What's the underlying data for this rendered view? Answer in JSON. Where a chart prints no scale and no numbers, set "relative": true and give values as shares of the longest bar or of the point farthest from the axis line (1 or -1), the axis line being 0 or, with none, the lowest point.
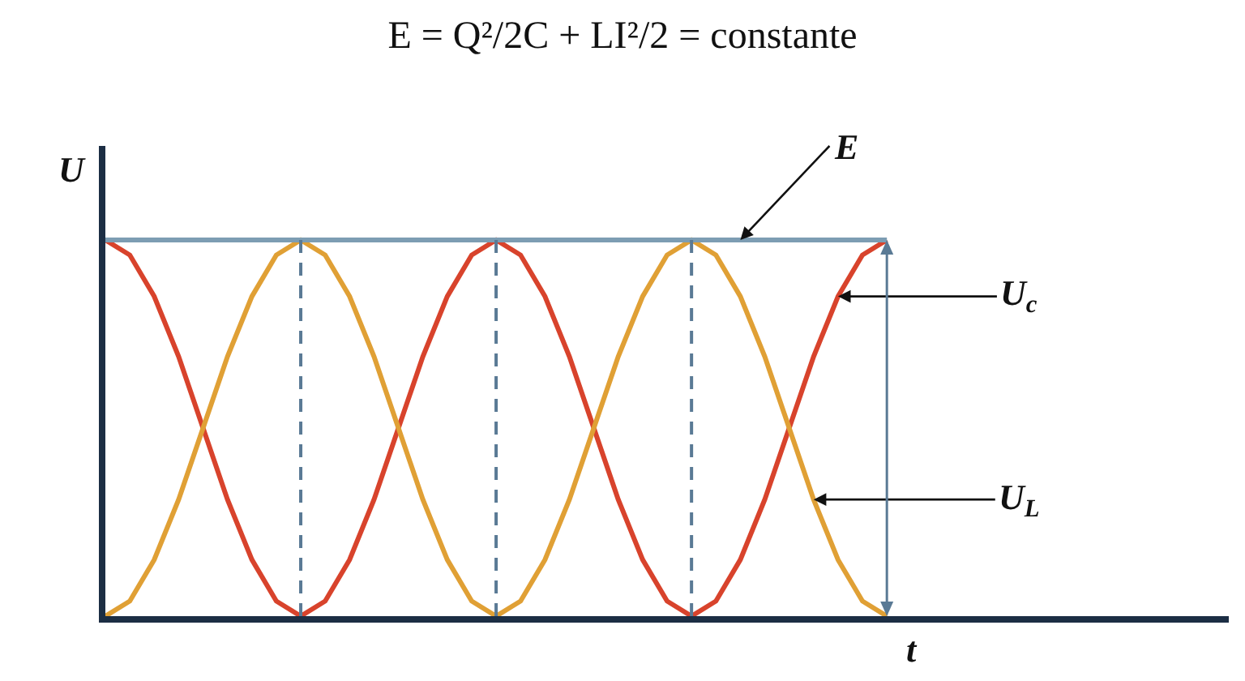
{
  "chart_data": {
    "type": "line",
    "relative": true,
    "title": "E = Q²/2C + LI²/2 = constante",
    "xlabel": "t",
    "ylabel": "U",
    "legend": false,
    "grid": "x",
    "marker": "none",
    "line_style": "solid",
    "categories": [
      null,
      null,
      null,
      null,
      null,
      null,
      null,
      null,
      null,
      null,
      null,
      null,
      null,
      null,
      null,
      null,
      null,
      null,
      null,
      null,
      null,
      null,
      null,
      null,
      null,
      null,
      null,
      null,
      null,
      null,
      null,
      null,
      null
    ],
    "series": [
      {
        "name": "U$_{c}$",
        "color": "#d8432c",
        "values": [
          1,
          0.96,
          0.85,
          0.69,
          0.5,
          0.31,
          0.15,
          0.04,
          0,
          0.04,
          0.15,
          0.31,
          0.5,
          0.69,
          0.85,
          0.96,
          1,
          0.96,
          0.85,
          0.69,
          0.5,
          0.31,
          0.15,
          0.04,
          0,
          0.04,
          0.15,
          0.31,
          0.5,
          0.69,
          0.85,
          0.96,
          1
        ]
      },
      {
        "name": "U$_{L}$",
        "color": "#e0a035",
        "values": [
          0,
          0.04,
          0.15,
          0.31,
          0.5,
          0.69,
          0.85,
          0.96,
          1,
          0.96,
          0.85,
          0.69,
          0.5,
          0.31,
          0.15,
          0.04,
          0,
          0.04,
          0.15,
          0.31,
          0.5,
          0.69,
          0.85,
          0.96,
          1,
          0.96,
          0.85,
          0.69,
          0.5,
          0.31,
          0.15,
          0.04,
          0
        ]
      },
      {
        "name": "E",
        "color": "#7d9db3",
        "values": [
          1,
          1,
          1,
          1,
          1,
          1,
          1,
          1,
          1,
          1,
          1,
          1,
          1,
          1,
          1,
          1,
          1,
          1,
          1,
          1,
          1,
          1,
          1,
          1,
          1,
          1,
          1,
          1,
          1,
          1,
          1,
          1,
          1
        ]
      }
    ]
  }
}
